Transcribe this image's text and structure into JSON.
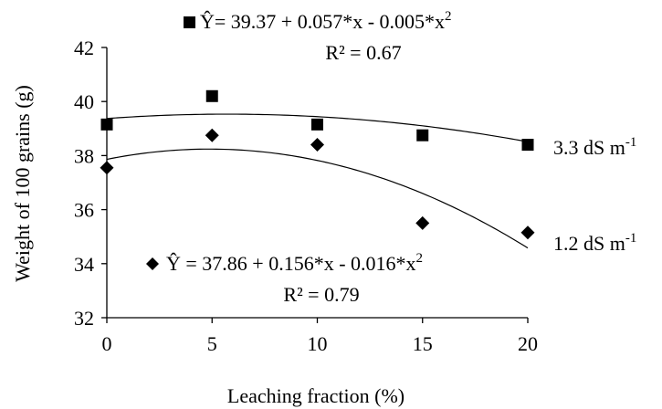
{
  "chart_data": {
    "type": "scatter",
    "xlabel": "Leaching fraction (%)",
    "ylabel": "Weight of 100 grains (g)",
    "xlim": [
      0,
      20
    ],
    "ylim": [
      32,
      42
    ],
    "x_ticks": [
      "0",
      "5",
      "10",
      "15",
      "20"
    ],
    "y_ticks": [
      "32",
      "34",
      "36",
      "38",
      "40",
      "42"
    ],
    "x_tick_values": [
      0,
      5,
      10,
      15,
      20
    ],
    "y_tick_values": [
      32,
      34,
      36,
      38,
      40,
      42
    ],
    "grid": false,
    "series": [
      {
        "name": "3.3 dS m",
        "name_sup": "-1",
        "marker": "square",
        "x": [
          0,
          5,
          10,
          15,
          20
        ],
        "y": [
          39.15,
          40.2,
          39.15,
          38.75,
          38.4
        ],
        "fit": {
          "a": 39.37,
          "b": 0.057,
          "c": -0.005
        },
        "equation_parts": [
          "Ŷ= 39.37 + 0.057*x  - 0.005*x",
          "2"
        ],
        "r2": "R² = 0.67"
      },
      {
        "name": "1.2 dS m",
        "name_sup": "-1",
        "marker": "diamond",
        "x": [
          0,
          5,
          10,
          15,
          20
        ],
        "y": [
          37.55,
          38.75,
          38.4,
          35.5,
          35.15
        ],
        "fit": {
          "a": 37.86,
          "b": 0.156,
          "c": -0.016
        },
        "equation_parts": [
          "Ŷ = 37.86 + 0.156*x - 0.016*x",
          "2"
        ],
        "r2": "R² = 0.79"
      }
    ]
  }
}
